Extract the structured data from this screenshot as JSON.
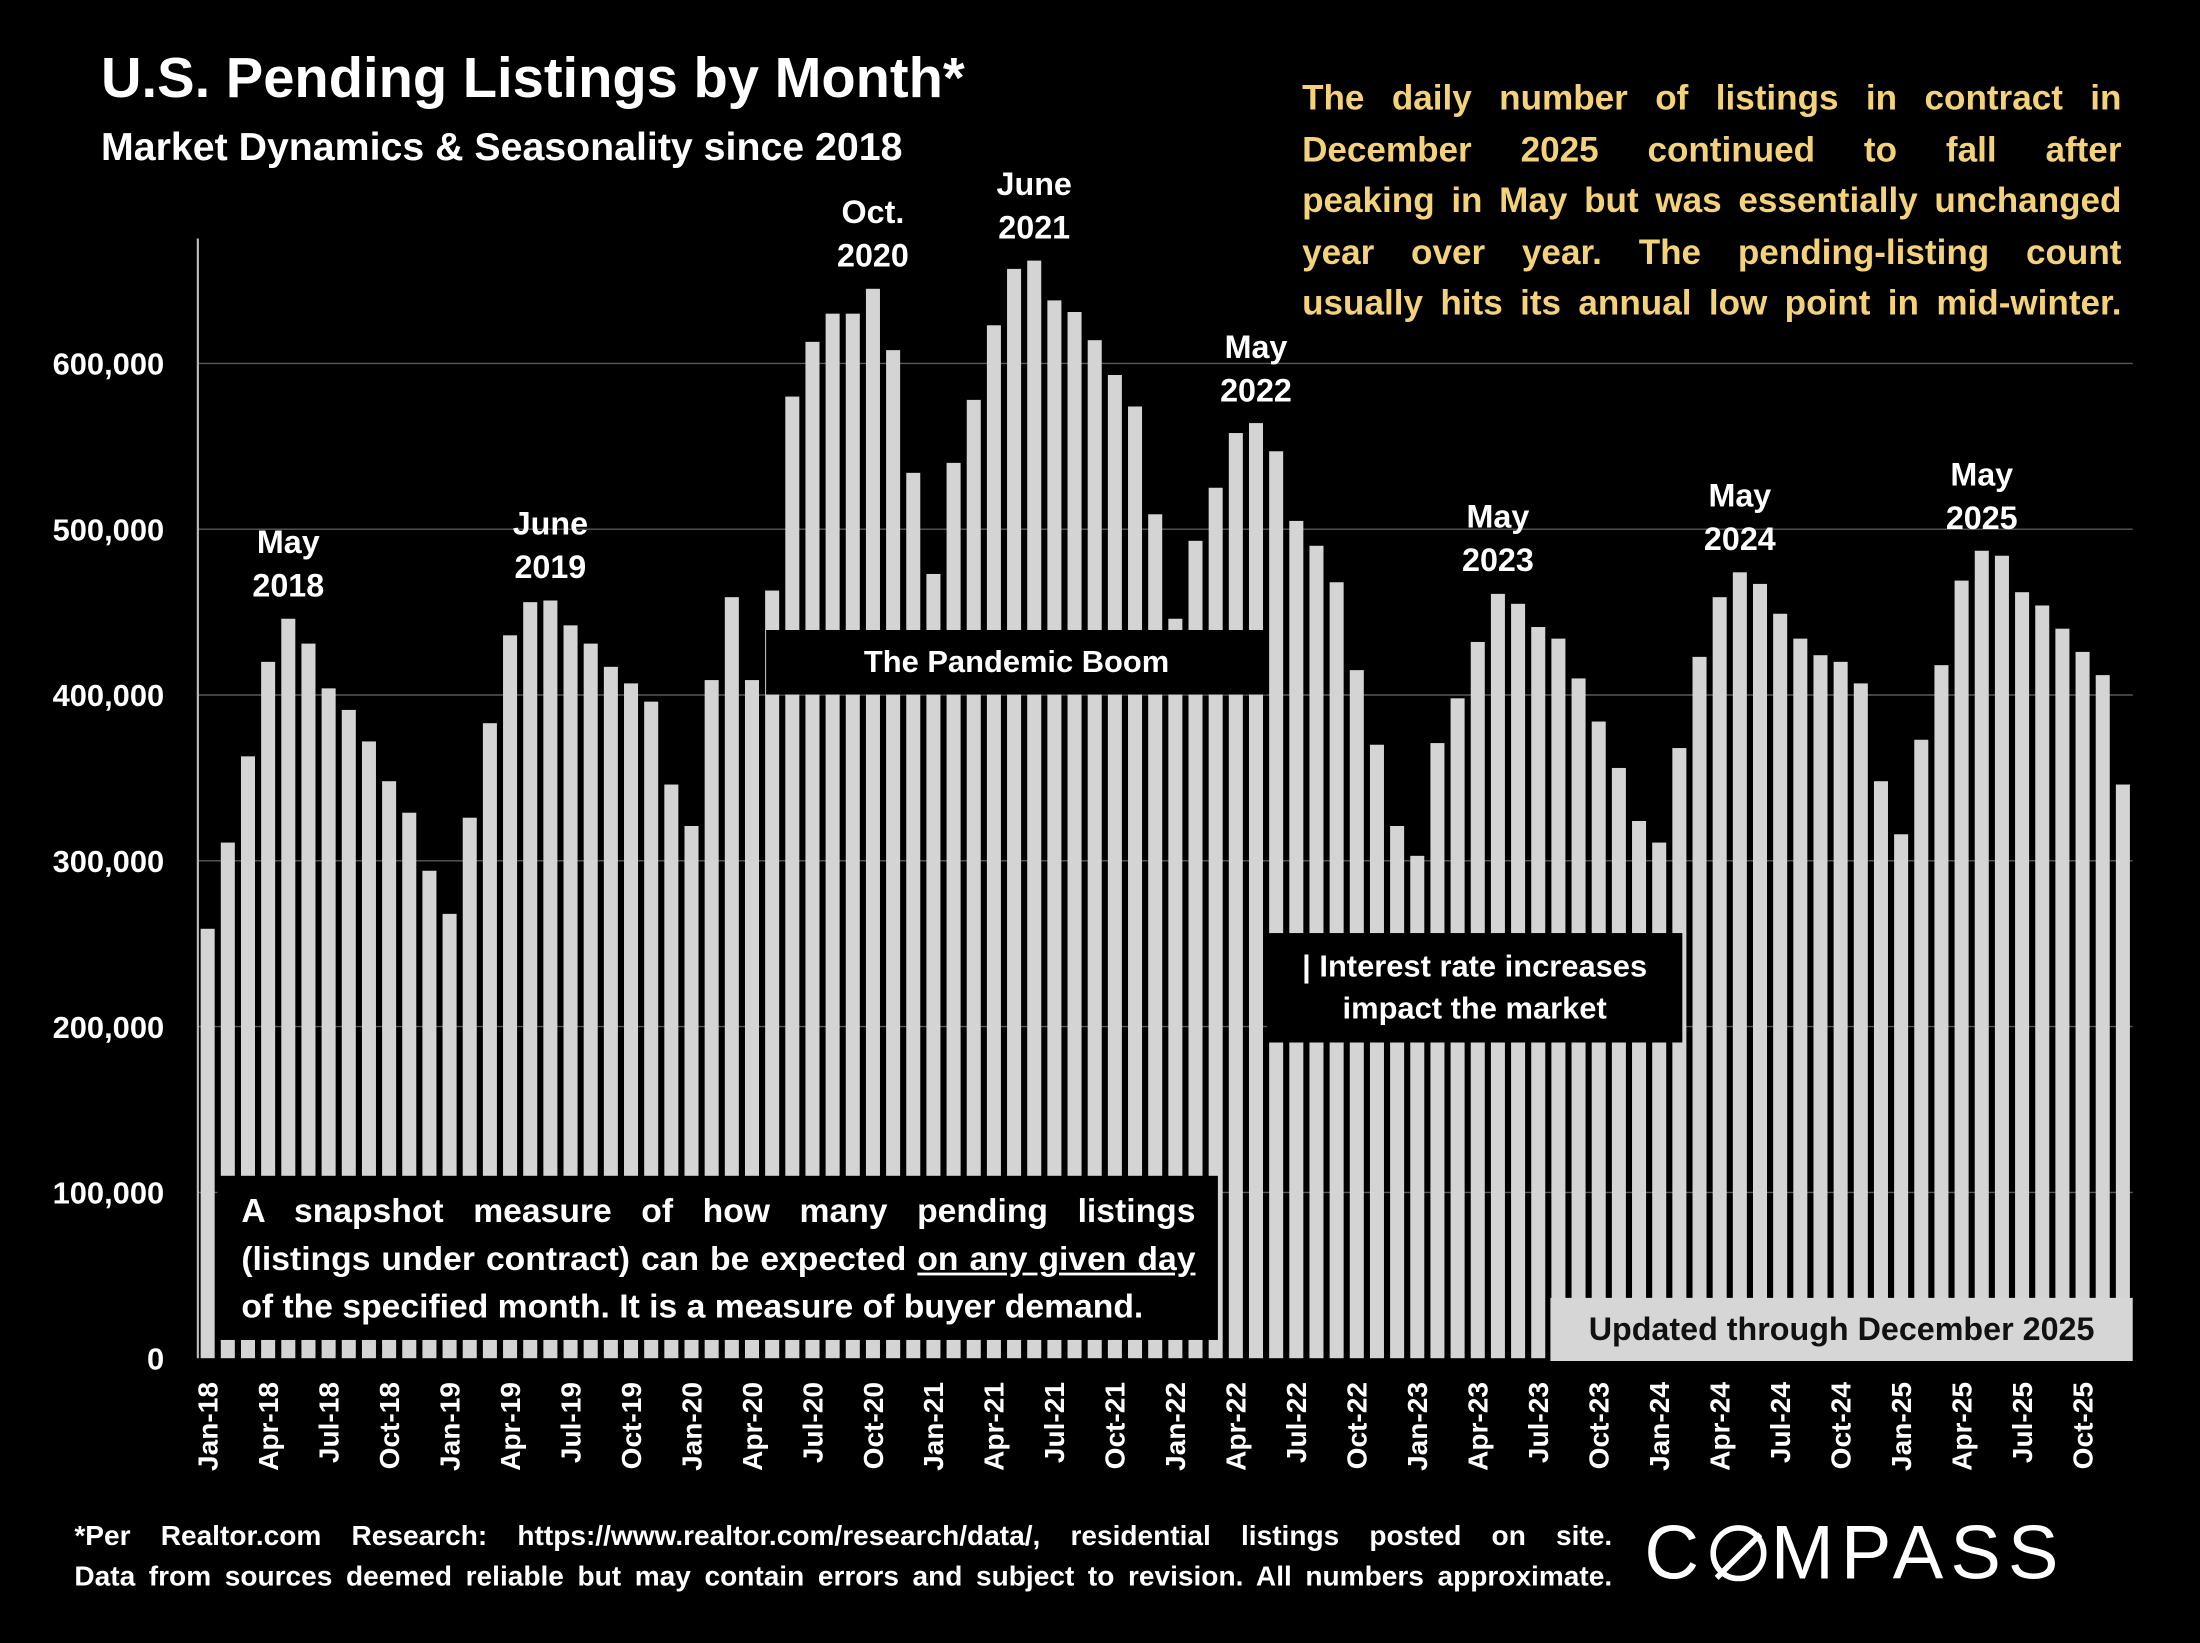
{
  "header": {
    "title": "U.S. Pending Listings by Month*",
    "subtitle": "Market Dynamics & Seasonality since 2018"
  },
  "blurb": {
    "lines": [
      "The daily number of listings in contract in",
      "December 2025 continued to fall after",
      "peaking in May but was essentially unchanged",
      "year over year. The pending-listing count",
      "usually hits its annual low point in mid-winter."
    ]
  },
  "annotations": {
    "pandemic": "The Pandemic Boom",
    "interest_line1": "| Interest rate increases",
    "interest_line2": "impact the market",
    "snapshot_line1": "A snapshot measure of how many pending listings",
    "snapshot_line2a": "(listings under contract) can be expected ",
    "snapshot_line2b": "on any given day",
    "snapshot_line3": "of the specified month. It is a measure of buyer demand.",
    "updated": "Updated through December 2025",
    "peaks": [
      {
        "l1": "May",
        "l2": "2018",
        "month": 4
      },
      {
        "l1": "June",
        "l2": "2019",
        "month": 17
      },
      {
        "l1": "Oct.",
        "l2": "2020",
        "month": 33
      },
      {
        "l1": "June",
        "l2": "2021",
        "month": 41
      },
      {
        "l1": "May",
        "l2": "2022",
        "month": 52
      },
      {
        "l1": "May",
        "l2": "2023",
        "month": 64
      },
      {
        "l1": "May",
        "l2": "2024",
        "month": 76
      },
      {
        "l1": "May",
        "l2": "2025",
        "month": 88
      }
    ]
  },
  "footer": {
    "line1": "*Per Realtor.com Research: https://www.realtor.com/research/data/, residential listings posted on site.",
    "line2": "Data from sources deemed reliable but may contain errors and subject to revision. All numbers approximate.",
    "logo": "COMPASS"
  },
  "chart_data": {
    "type": "bar",
    "title": "U.S. Pending Listings by Month*",
    "xlabel": "",
    "ylabel": "",
    "ylim": [
      0,
      700000
    ],
    "yticks": [
      0,
      100000,
      200000,
      300000,
      400000,
      500000,
      600000
    ],
    "ytick_labels": [
      "0",
      "100,000",
      "200,000",
      "300,000",
      "400,000",
      "500,000",
      "600,000"
    ],
    "grid": true,
    "bar_color": "#d4d4d4",
    "xtick_labels": [
      "Jan-18",
      "Apr-18",
      "Jul-18",
      "Oct-18",
      "Jan-19",
      "Apr-19",
      "Jul-19",
      "Oct-19",
      "Jan-20",
      "Apr-20",
      "Jul-20",
      "Oct-20",
      "Jan-21",
      "Apr-21",
      "Jul-21",
      "Oct-21",
      "Jan-22",
      "Apr-22",
      "Jul-22",
      "Oct-22",
      "Jan-23",
      "Apr-23",
      "Jul-23",
      "Oct-23",
      "Jan-24",
      "Apr-24",
      "Jul-24",
      "Oct-24",
      "Jan-25",
      "Apr-25",
      "Jul-25",
      "Oct-25"
    ],
    "start": "Jan-18",
    "values": [
      259000,
      311000,
      363000,
      420000,
      446000,
      431000,
      404000,
      391000,
      372000,
      348000,
      329000,
      294000,
      268000,
      326000,
      383000,
      436000,
      456000,
      457000,
      442000,
      431000,
      417000,
      407000,
      396000,
      346000,
      321000,
      409000,
      459000,
      409000,
      463000,
      580000,
      613000,
      630000,
      630000,
      645000,
      608000,
      534000,
      473000,
      540000,
      578000,
      623000,
      657000,
      662000,
      638000,
      631000,
      614000,
      593000,
      574000,
      509000,
      446000,
      493000,
      525000,
      558000,
      564000,
      547000,
      505000,
      490000,
      468000,
      415000,
      370000,
      321000,
      303000,
      371000,
      398000,
      432000,
      461000,
      455000,
      441000,
      434000,
      410000,
      384000,
      356000,
      324000,
      311000,
      368000,
      423000,
      459000,
      474000,
      467000,
      449000,
      434000,
      424000,
      420000,
      407000,
      348000,
      316000,
      373000,
      418000,
      469000,
      487000,
      484000,
      462000,
      454000,
      440000,
      426000,
      412000,
      346000
    ]
  }
}
